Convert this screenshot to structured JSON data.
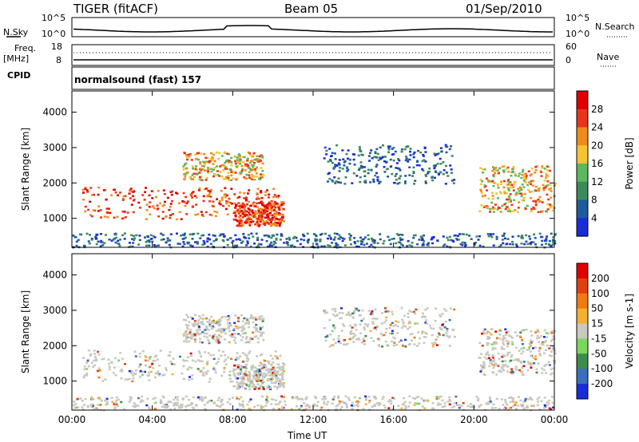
{
  "header": {
    "radar": "TIGER (fitACF)",
    "beam": "Beam 05",
    "date": "01/Sep/2010"
  },
  "left_labels": {
    "nsky": "N.Sky",
    "freq": "Freq.",
    "freq_unit": "[MHz]",
    "cpid": "CPID"
  },
  "right_labels": {
    "nsearch": "N.Search",
    "nave": "Nave"
  },
  "noise_ticks_left": [
    "10^5",
    "10^0"
  ],
  "noise_ticks_right": [
    "10^5",
    "10^0"
  ],
  "freq_ticks": [
    "18",
    "8"
  ],
  "nave_ticks": [
    "60",
    "0"
  ],
  "cpid_text": "normalsound (fast) 157",
  "chart_data": [
    {
      "type": "heatmap",
      "name": "Power",
      "ylabel": "Slant Range [km]",
      "xlabel": "Time UT",
      "y_ticks": [
        1000,
        2000,
        3000,
        4000
      ],
      "ylim": [
        180,
        4600
      ],
      "x_ticks": [
        "00:00",
        "04:00",
        "08:00",
        "12:00",
        "16:00",
        "20:00",
        "00:00"
      ],
      "colorbar_label": "Power [dB]",
      "colorbar_ticks": [
        "4",
        "8",
        "12",
        "16",
        "20",
        "24",
        "28"
      ],
      "colorbar_colors": [
        "#1a2cd8",
        "#1f5a9c",
        "#3b8a5a",
        "#5cb85c",
        "#f4c430",
        "#f08c1c",
        "#e8351c",
        "#e00000"
      ]
    },
    {
      "type": "heatmap",
      "name": "Velocity",
      "ylabel": "Slant Range [km]",
      "xlabel": "Time UT",
      "y_ticks": [
        1000,
        2000,
        3000,
        4000
      ],
      "ylim": [
        180,
        4600
      ],
      "x_ticks": [
        "00:00",
        "04:00",
        "08:00",
        "12:00",
        "16:00",
        "20:00",
        "00:00"
      ],
      "colorbar_label": "Velocity [m s-1]",
      "colorbar_ticks": [
        "200",
        "100",
        "50",
        "15",
        "-15",
        "-50",
        "-100",
        "-200"
      ],
      "colorbar_colors": [
        "#1a2cd8",
        "#3a6fbe",
        "#3c8c4c",
        "#7cd65c",
        "#c8c8c0",
        "#f4b030",
        "#f07a10",
        "#e04010",
        "#e00000"
      ]
    }
  ],
  "x_axis_title": "Time UT"
}
